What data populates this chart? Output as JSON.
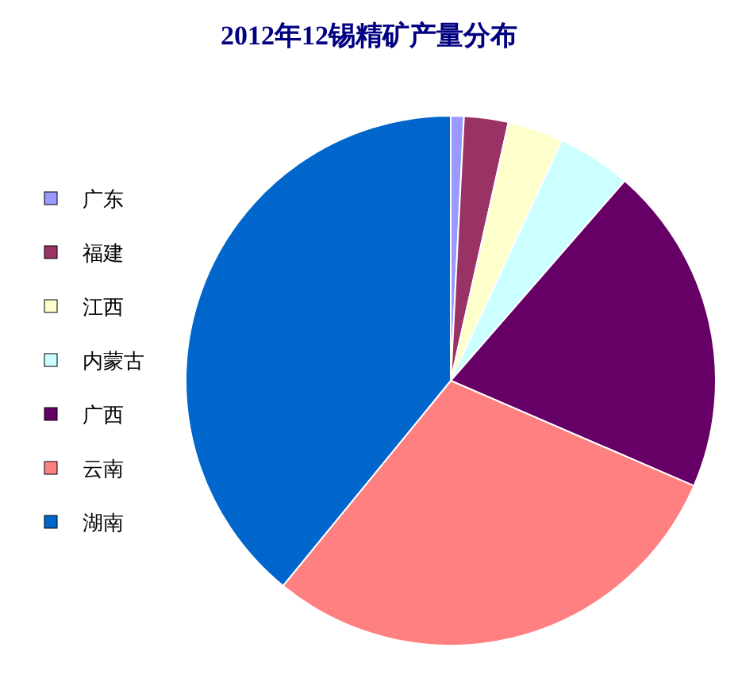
{
  "chart_data": {
    "type": "pie",
    "title": "2012年12锡精矿产量分布",
    "categories": [
      "广东",
      "福建",
      "江西",
      "内蒙古",
      "广西",
      "云南",
      "湖南"
    ],
    "values": [
      0.8,
      2.7,
      3.4,
      4.5,
      20.1,
      29.4,
      39.1
    ],
    "colors": [
      "#9999ff",
      "#993366",
      "#ffffcc",
      "#ccffff",
      "#660066",
      "#ff8080",
      "#0066cc"
    ],
    "legend": "left"
  }
}
